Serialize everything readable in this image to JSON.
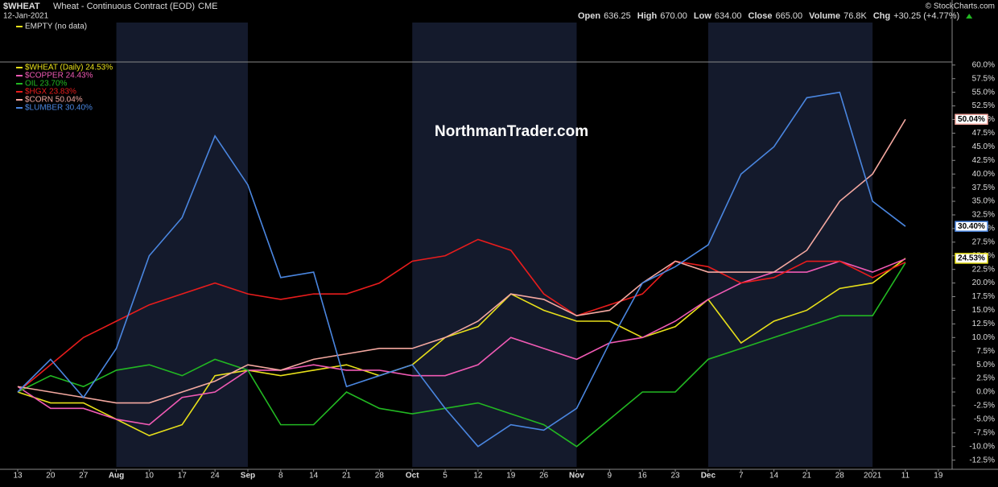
{
  "header": {
    "symbol": "$WHEAT",
    "description": "Wheat - Continuous Contract (EOD)",
    "exchange": "CME",
    "date": "12-Jan-2021",
    "quote": [
      {
        "label": "Open",
        "value": "636.25"
      },
      {
        "label": "High",
        "value": "670.00"
      },
      {
        "label": "Low",
        "value": "634.00"
      },
      {
        "label": "Close",
        "value": "665.00"
      },
      {
        "label": "Volume",
        "value": "76.8K"
      },
      {
        "label": "Chg",
        "value": "+30.25 (+4.77%)"
      }
    ],
    "copyright": "© StockCharts.com",
    "empty_legend": "EMPTY (no data)",
    "watermark": "NorthmanTrader.com"
  },
  "chart_data": {
    "type": "line",
    "categories": [
      "13",
      "20",
      "27",
      "Aug",
      "10",
      "17",
      "24",
      "Sep",
      "8",
      "14",
      "21",
      "28",
      "Oct",
      "5",
      "12",
      "19",
      "26",
      "Nov",
      "9",
      "16",
      "23",
      "Dec",
      "7",
      "14",
      "21",
      "28",
      "2021",
      "11",
      "19"
    ],
    "ylim": [
      -13.5,
      61.5
    ],
    "yticks": [
      {
        "value": -12.5,
        "label": "-12.5%"
      },
      {
        "value": -10,
        "label": "-10.0%"
      },
      {
        "value": -7.5,
        "label": "-7.5%"
      },
      {
        "value": -5,
        "label": "-5.0%"
      },
      {
        "value": -2.5,
        "label": "-2.5%"
      },
      {
        "value": 0,
        "label": "0.0%"
      },
      {
        "value": 2.5,
        "label": "2.5%"
      },
      {
        "value": 5,
        "label": "5.0%"
      },
      {
        "value": 7.5,
        "label": "7.5%"
      },
      {
        "value": 10,
        "label": "10.0%"
      },
      {
        "value": 12.5,
        "label": "12.5%"
      },
      {
        "value": 15,
        "label": "15.0%"
      },
      {
        "value": 17.5,
        "label": "17.5%"
      },
      {
        "value": 20,
        "label": "20.0%"
      },
      {
        "value": 22.5,
        "label": "22.5%"
      },
      {
        "value": 25,
        "label": "25.0%"
      },
      {
        "value": 27.5,
        "label": "27.5%"
      },
      {
        "value": 30,
        "label": "30.0%"
      },
      {
        "value": 32.5,
        "label": "32.5%"
      },
      {
        "value": 35,
        "label": "35.0%"
      },
      {
        "value": 37.5,
        "label": "37.5%"
      },
      {
        "value": 40,
        "label": "40.0%"
      },
      {
        "value": 42.5,
        "label": "42.5%"
      },
      {
        "value": 45,
        "label": "45.0%"
      },
      {
        "value": 47.5,
        "label": "47.5%"
      },
      {
        "value": 50,
        "label": "50.0%"
      },
      {
        "value": 52.5,
        "label": "52.5%"
      },
      {
        "value": 55,
        "label": "55.0%"
      },
      {
        "value": 57.5,
        "label": "57.5%"
      },
      {
        "value": 60,
        "label": "60.0%"
      }
    ],
    "series": [
      {
        "name": "$WHEAT (Daily) 24.53%",
        "color": "#e8e01a",
        "values": [
          0,
          -2,
          -2,
          -5,
          -8,
          -6,
          3,
          4,
          3,
          4,
          5,
          3,
          5,
          10,
          12,
          18,
          15,
          13,
          13,
          10,
          12,
          17,
          9,
          13,
          15,
          19,
          20,
          24.53,
          null
        ],
        "value_labels": [
          null,
          null,
          null,
          null,
          null,
          null,
          null,
          null,
          null,
          null,
          null,
          null,
          null,
          null,
          null,
          null,
          null,
          null,
          null,
          null,
          null,
          null,
          null,
          null,
          null,
          null,
          null,
          "24.53%",
          null
        ]
      },
      {
        "name": "$COPPER 24.43%",
        "color": "#f05ab4",
        "values": [
          1,
          -3,
          -3,
          -5,
          -6,
          -1,
          0,
          4,
          4,
          5,
          4,
          4,
          3,
          3,
          5,
          10,
          8,
          6,
          9,
          10,
          13,
          17,
          20,
          22,
          22,
          24,
          22,
          24.43,
          null
        ]
      },
      {
        "name": "OIL 23.70%",
        "color": "#22b822",
        "values": [
          0,
          3,
          1,
          4,
          5,
          3,
          6,
          4,
          -6,
          -6,
          0,
          -3,
          -4,
          -3,
          -2,
          -4,
          -6,
          -10,
          -5,
          0,
          0,
          6,
          8,
          10,
          12,
          14,
          14,
          23.7,
          null
        ]
      },
      {
        "name": "$HGX 23.83%",
        "color": "#e81c1c",
        "values": [
          0,
          5,
          10,
          13,
          16,
          18,
          20,
          18,
          17,
          18,
          18,
          20,
          24,
          25,
          28,
          26,
          18,
          14,
          16,
          18,
          24,
          23,
          20,
          21,
          24,
          24,
          21,
          23.83,
          null
        ]
      },
      {
        "name": "$CORN 50.04%",
        "color": "#f4a8a0",
        "values": [
          1,
          0,
          -1,
          -2,
          -2,
          0,
          2,
          5,
          4,
          6,
          7,
          8,
          8,
          10,
          13,
          18,
          17,
          14,
          15,
          20,
          24,
          22,
          22,
          22,
          26,
          35,
          40,
          50.04,
          null
        ],
        "value_labels": [
          null,
          null,
          null,
          null,
          null,
          null,
          null,
          null,
          null,
          null,
          null,
          null,
          null,
          null,
          null,
          null,
          null,
          null,
          null,
          null,
          null,
          null,
          null,
          null,
          null,
          null,
          null,
          "50.04%",
          null
        ]
      },
      {
        "name": "$LUMBER 30.40%",
        "color": "#4a86e0",
        "values": [
          0,
          6,
          -1,
          8,
          25,
          32,
          47,
          38,
          21,
          22,
          1,
          3,
          5,
          -3,
          -10,
          -6,
          -7,
          -3,
          9,
          20,
          23,
          27,
          40,
          45,
          54,
          55,
          35,
          30.4,
          null
        ],
        "value_labels": [
          null,
          null,
          null,
          null,
          null,
          null,
          null,
          null,
          null,
          null,
          null,
          null,
          null,
          null,
          null,
          null,
          null,
          null,
          null,
          null,
          null,
          null,
          null,
          null,
          null,
          null,
          null,
          "30.40%",
          null
        ]
      }
    ]
  }
}
